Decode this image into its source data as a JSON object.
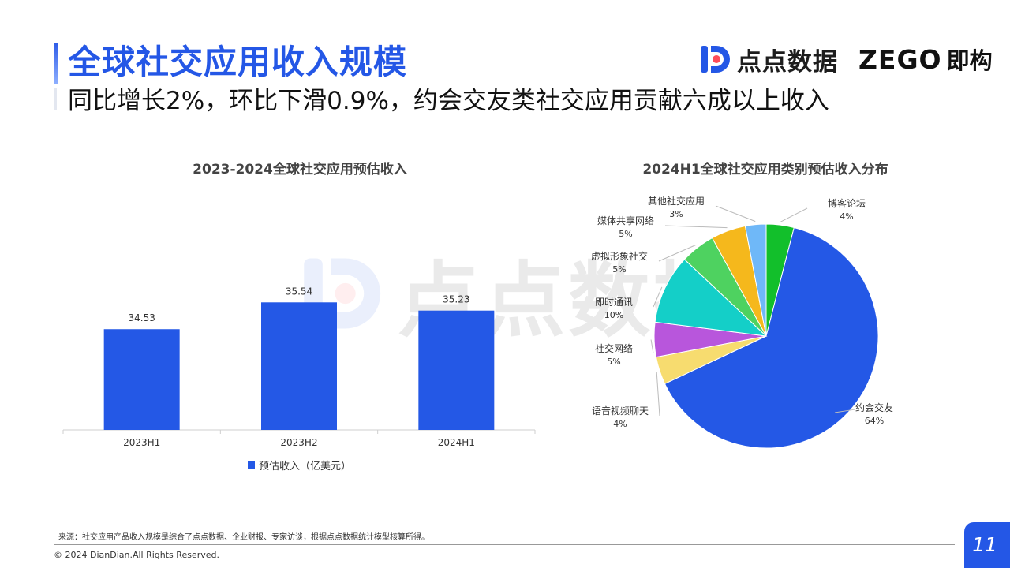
{
  "header": {
    "title": "全球社交应用收入规模",
    "subtitle": "同比增长2%，环比下滑0.9%，约会交友类社交应用贡献六成以上收入"
  },
  "logos": {
    "diandian": "点点数据",
    "zego": "ZEGO",
    "zego_cn": "即构"
  },
  "watermark": "点点数据",
  "colors": {
    "brand_blue": "#2457e6"
  },
  "chart_data": [
    {
      "type": "bar",
      "title": "2023-2024全球社交应用预估收入",
      "categories": [
        "2023H1",
        "2023H2",
        "2024H1"
      ],
      "series": [
        {
          "name": "预估收入（亿美元）",
          "values": [
            34.53,
            35.54,
            35.23
          ],
          "labels": [
            "34.53",
            "35.54",
            "35.23"
          ],
          "color": "#2458e6"
        }
      ],
      "legend": "bottom"
    },
    {
      "type": "pie",
      "title": "2024H1全球社交应用类别预估收入分布",
      "slices": [
        {
          "name": "博客论坛",
          "pct_label": "4%",
          "value": 4,
          "color": "#12bf2b"
        },
        {
          "name": "约会交友",
          "pct_label": "64%",
          "value": 64,
          "color": "#2458e6"
        },
        {
          "name": "语音视频聊天",
          "pct_label": "4%",
          "value": 4,
          "color": "#f7dc6f"
        },
        {
          "name": "社交网络",
          "pct_label": "5%",
          "value": 5,
          "color": "#b856dc"
        },
        {
          "name": "即时通讯",
          "pct_label": "10%",
          "value": 10,
          "color": "#14cfc8"
        },
        {
          "name": "虚拟形象社交",
          "pct_label": "5%",
          "value": 5,
          "color": "#4ed260"
        },
        {
          "name": "媒体共享网络",
          "pct_label": "5%",
          "value": 5,
          "color": "#f5b81c"
        },
        {
          "name": "其他社交应用",
          "pct_label": "3%",
          "value": 3,
          "color": "#6fb8f8"
        }
      ]
    }
  ],
  "footer": {
    "source": "来源：社交应用产品收入规模是综合了点点数据、企业财报、专家访谈，根据点点数据统计模型核算所得。",
    "copyright": "© 2024 DianDian.All Rights Reserved.",
    "page": "11"
  }
}
